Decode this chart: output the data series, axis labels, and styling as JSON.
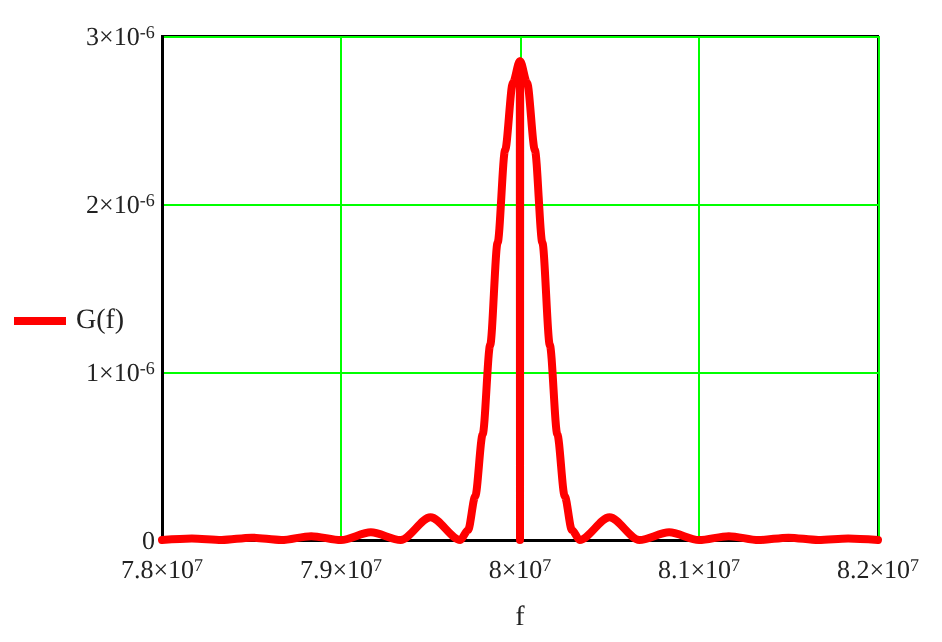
{
  "chart_data": {
    "type": "line",
    "xlabel": "f",
    "legend": "left",
    "grid": true,
    "marker": "none",
    "line_style": "solid",
    "x": [
      78000000,
      78166700,
      78333300,
      78500000,
      78666700,
      78833300,
      79000000,
      79166700,
      79333300,
      79500000,
      79666700,
      79710000,
      79750000,
      79791700,
      79833300,
      79875000,
      79916700,
      79960000,
      79999000,
      80000000,
      80001000,
      80040000,
      80083300,
      80125000,
      80166700,
      80208300,
      80250000,
      80290000,
      80333300,
      80500000,
      80666700,
      80833300,
      81000000,
      81166700,
      81333300,
      81500000,
      81666700,
      81833300,
      82000000
    ],
    "series": [
      {
        "name": "G(f)",
        "color": "#ff0000",
        "values": [
          0,
          9e-09,
          0,
          1.4e-08,
          0,
          2.3e-08,
          0,
          4.6e-08,
          0,
          1.35e-07,
          0,
          6e-08,
          2.6e-07,
          6.3e-07,
          1.16e-06,
          1.77e-06,
          2.32e-06,
          2.72e-06,
          2.85e-06,
          0,
          2.85e-06,
          2.72e-06,
          2.32e-06,
          1.77e-06,
          1.16e-06,
          6.3e-07,
          2.6e-07,
          6e-08,
          0,
          1.35e-07,
          0,
          4.6e-08,
          0,
          2.3e-08,
          0,
          1.4e-08,
          0,
          9e-09,
          0
        ]
      }
    ],
    "xlim": [
      78000000,
      82000000
    ],
    "xticks": [
      {
        "value": 78000000,
        "label": "7.8×10$^{7}$"
      },
      {
        "value": 79000000,
        "label": "7.9×10$^{7}$"
      },
      {
        "value": 80000000,
        "label": "8×10$^{7}$"
      },
      {
        "value": 81000000,
        "label": "8.1×10$^{7}$"
      },
      {
        "value": 82000000,
        "label": "8.2×10$^{7}$"
      }
    ],
    "ylim": [
      0,
      3e-06
    ],
    "yticks": [
      0,
      {
        "value": 1e-06,
        "label": "1×10$^{-6}$"
      },
      {
        "value": 2e-06,
        "label": "2×10$^{-6}$"
      },
      {
        "value": 3e-06,
        "label": "3×10$^{-6}$"
      }
    ]
  }
}
